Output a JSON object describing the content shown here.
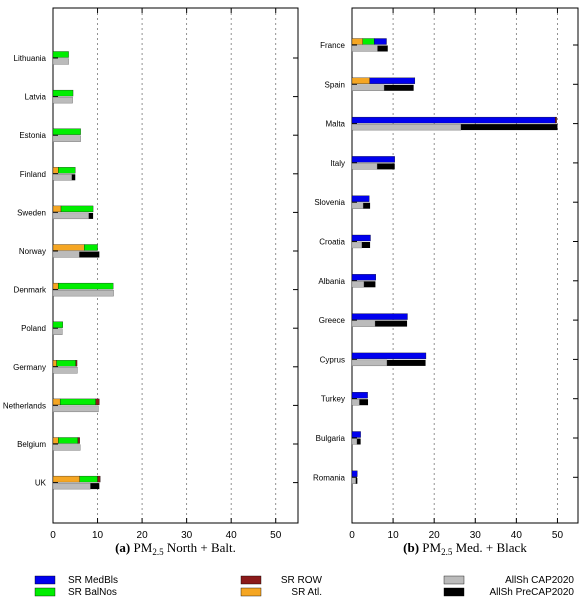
{
  "colors": {
    "SR MedBls": "#0000ee",
    "SR BalNos": "#00ee00",
    "SR ROW": "#8b1a1a",
    "SR Atl.": "#f5a623",
    "AllSh CAP2020": "#bbbbbb",
    "AllSh PreCAP2020": "#000000"
  },
  "legend": [
    {
      "key": "SR MedBls",
      "label": "SR MedBls"
    },
    {
      "key": "SR BalNos",
      "label": "SR BalNos"
    },
    {
      "key": "SR ROW",
      "label": "SR ROW"
    },
    {
      "key": "SR Atl.",
      "label": "SR Atl."
    },
    {
      "key": "AllSh CAP2020",
      "label": "AllSh CAP2020"
    },
    {
      "key": "AllSh PreCAP2020",
      "label": "AllSh  PreCAP2020"
    }
  ],
  "chart_data": [
    {
      "type": "bar",
      "orientation": "horizontal",
      "panel_letter": "(a)",
      "caption_base": "PM",
      "caption_sub": "2.5",
      "caption_rest": " North + Balt.",
      "xlim": [
        0,
        55
      ],
      "xticks": [
        0,
        10,
        20,
        30,
        40,
        50
      ],
      "grid": true,
      "categories": [
        "Lithuania",
        "Latvia",
        "Estonia",
        "Finland",
        "Sweden",
        "Norway",
        "Denmark",
        "Poland",
        "Germany",
        "Netherlands",
        "Belgium",
        "UK"
      ],
      "stacked_series": [
        {
          "name": "SR Atl.",
          "values": [
            0,
            0,
            0,
            1.2,
            1.8,
            7.0,
            1.2,
            0,
            0.8,
            1.6,
            1.2,
            6.0
          ]
        },
        {
          "name": "SR BalNos",
          "values": [
            3.5,
            4.5,
            6.2,
            3.8,
            7.2,
            3.0,
            12.3,
            2.2,
            4.3,
            8.0,
            4.4,
            4.0
          ]
        },
        {
          "name": "SR ROW",
          "values": [
            0,
            0,
            0,
            0,
            0,
            0,
            0,
            0,
            0.3,
            0.8,
            0.4,
            0.6
          ]
        }
      ],
      "total_series": [
        {
          "name": "AllSh CAP2020",
          "values": [
            3.5,
            4.4,
            6.2,
            4.2,
            8.0,
            5.9,
            13.6,
            2.1,
            5.5,
            10.2,
            6.1,
            8.4
          ]
        },
        {
          "name": "AllSh PreCAP2020",
          "values": [
            3.5,
            4.4,
            6.2,
            5.0,
            9.0,
            10.4,
            13.6,
            2.1,
            5.5,
            10.2,
            6.1,
            10.4
          ]
        }
      ]
    },
    {
      "type": "bar",
      "orientation": "horizontal",
      "panel_letter": "(b)",
      "caption_base": "PM",
      "caption_sub": "2.5",
      "caption_rest": " Med. + Black",
      "xlim": [
        0,
        55
      ],
      "xticks": [
        0,
        10,
        20,
        30,
        40,
        50
      ],
      "grid": true,
      "categories": [
        "France",
        "Spain",
        "Malta",
        "Italy",
        "Slovenia",
        "Croatia",
        "Albania",
        "Greece",
        "Cyprus",
        "Turkey",
        "Bulgaria",
        "Romania"
      ],
      "stacked_series": [
        {
          "name": "SR Atl.",
          "values": [
            2.6,
            4.3,
            0,
            0,
            0,
            0,
            0,
            0,
            0,
            0,
            0,
            0
          ]
        },
        {
          "name": "SR BalNos",
          "values": [
            2.8,
            0,
            0,
            0,
            0,
            0,
            0,
            0,
            0,
            0,
            0,
            0
          ]
        },
        {
          "name": "SR MedBls",
          "values": [
            3.0,
            11.0,
            49.5,
            10.4,
            4.2,
            4.5,
            5.8,
            13.5,
            18.0,
            3.8,
            2.1,
            1.3
          ]
        },
        {
          "name": "SR ROW",
          "values": [
            0,
            0,
            0.3,
            0,
            0,
            0,
            0,
            0,
            0,
            0,
            0,
            0
          ]
        }
      ],
      "total_series": [
        {
          "name": "AllSh CAP2020",
          "values": [
            6.2,
            7.8,
            26.5,
            6.1,
            2.7,
            2.4,
            2.9,
            5.6,
            8.5,
            1.8,
            1.2,
            0.9
          ]
        },
        {
          "name": "AllSh PreCAP2020",
          "values": [
            8.7,
            15.0,
            50.0,
            10.4,
            4.4,
            4.4,
            5.7,
            13.4,
            17.9,
            3.9,
            2.1,
            1.3
          ]
        }
      ]
    }
  ]
}
